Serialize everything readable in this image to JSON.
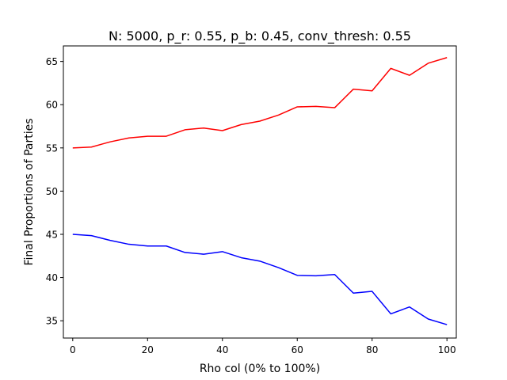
{
  "chart_data": {
    "type": "line",
    "title": "N: 5000, p_r: 0.55, p_b: 0.45, conv_thresh: 0.55",
    "xlabel": "Rho col (0% to 100%)",
    "ylabel": "Final Proportions of Parties",
    "xlim": [
      -2.5,
      102.5
    ],
    "ylim": [
      33.0,
      66.8
    ],
    "xticks": [
      0,
      20,
      40,
      60,
      80,
      100
    ],
    "yticks": [
      35,
      40,
      45,
      50,
      55,
      60,
      65
    ],
    "grid": false,
    "legend": "none",
    "x": [
      0,
      5,
      10,
      15,
      20,
      25,
      30,
      35,
      40,
      45,
      50,
      55,
      60,
      65,
      70,
      75,
      80,
      85,
      90,
      95,
      100
    ],
    "series": [
      {
        "color": "#ff0000",
        "values": [
          55.0,
          55.1,
          55.7,
          56.15,
          56.35,
          56.35,
          57.1,
          57.3,
          57.0,
          57.7,
          58.1,
          58.8,
          59.75,
          59.8,
          59.65,
          61.8,
          61.6,
          64.2,
          63.4,
          64.8,
          65.45
        ]
      },
      {
        "color": "#0000ff",
        "values": [
          45.0,
          44.85,
          44.3,
          43.85,
          43.65,
          43.65,
          42.9,
          42.7,
          43.0,
          42.3,
          41.9,
          41.15,
          40.25,
          40.2,
          40.35,
          38.2,
          38.4,
          35.8,
          36.6,
          35.2,
          34.55
        ]
      }
    ]
  }
}
